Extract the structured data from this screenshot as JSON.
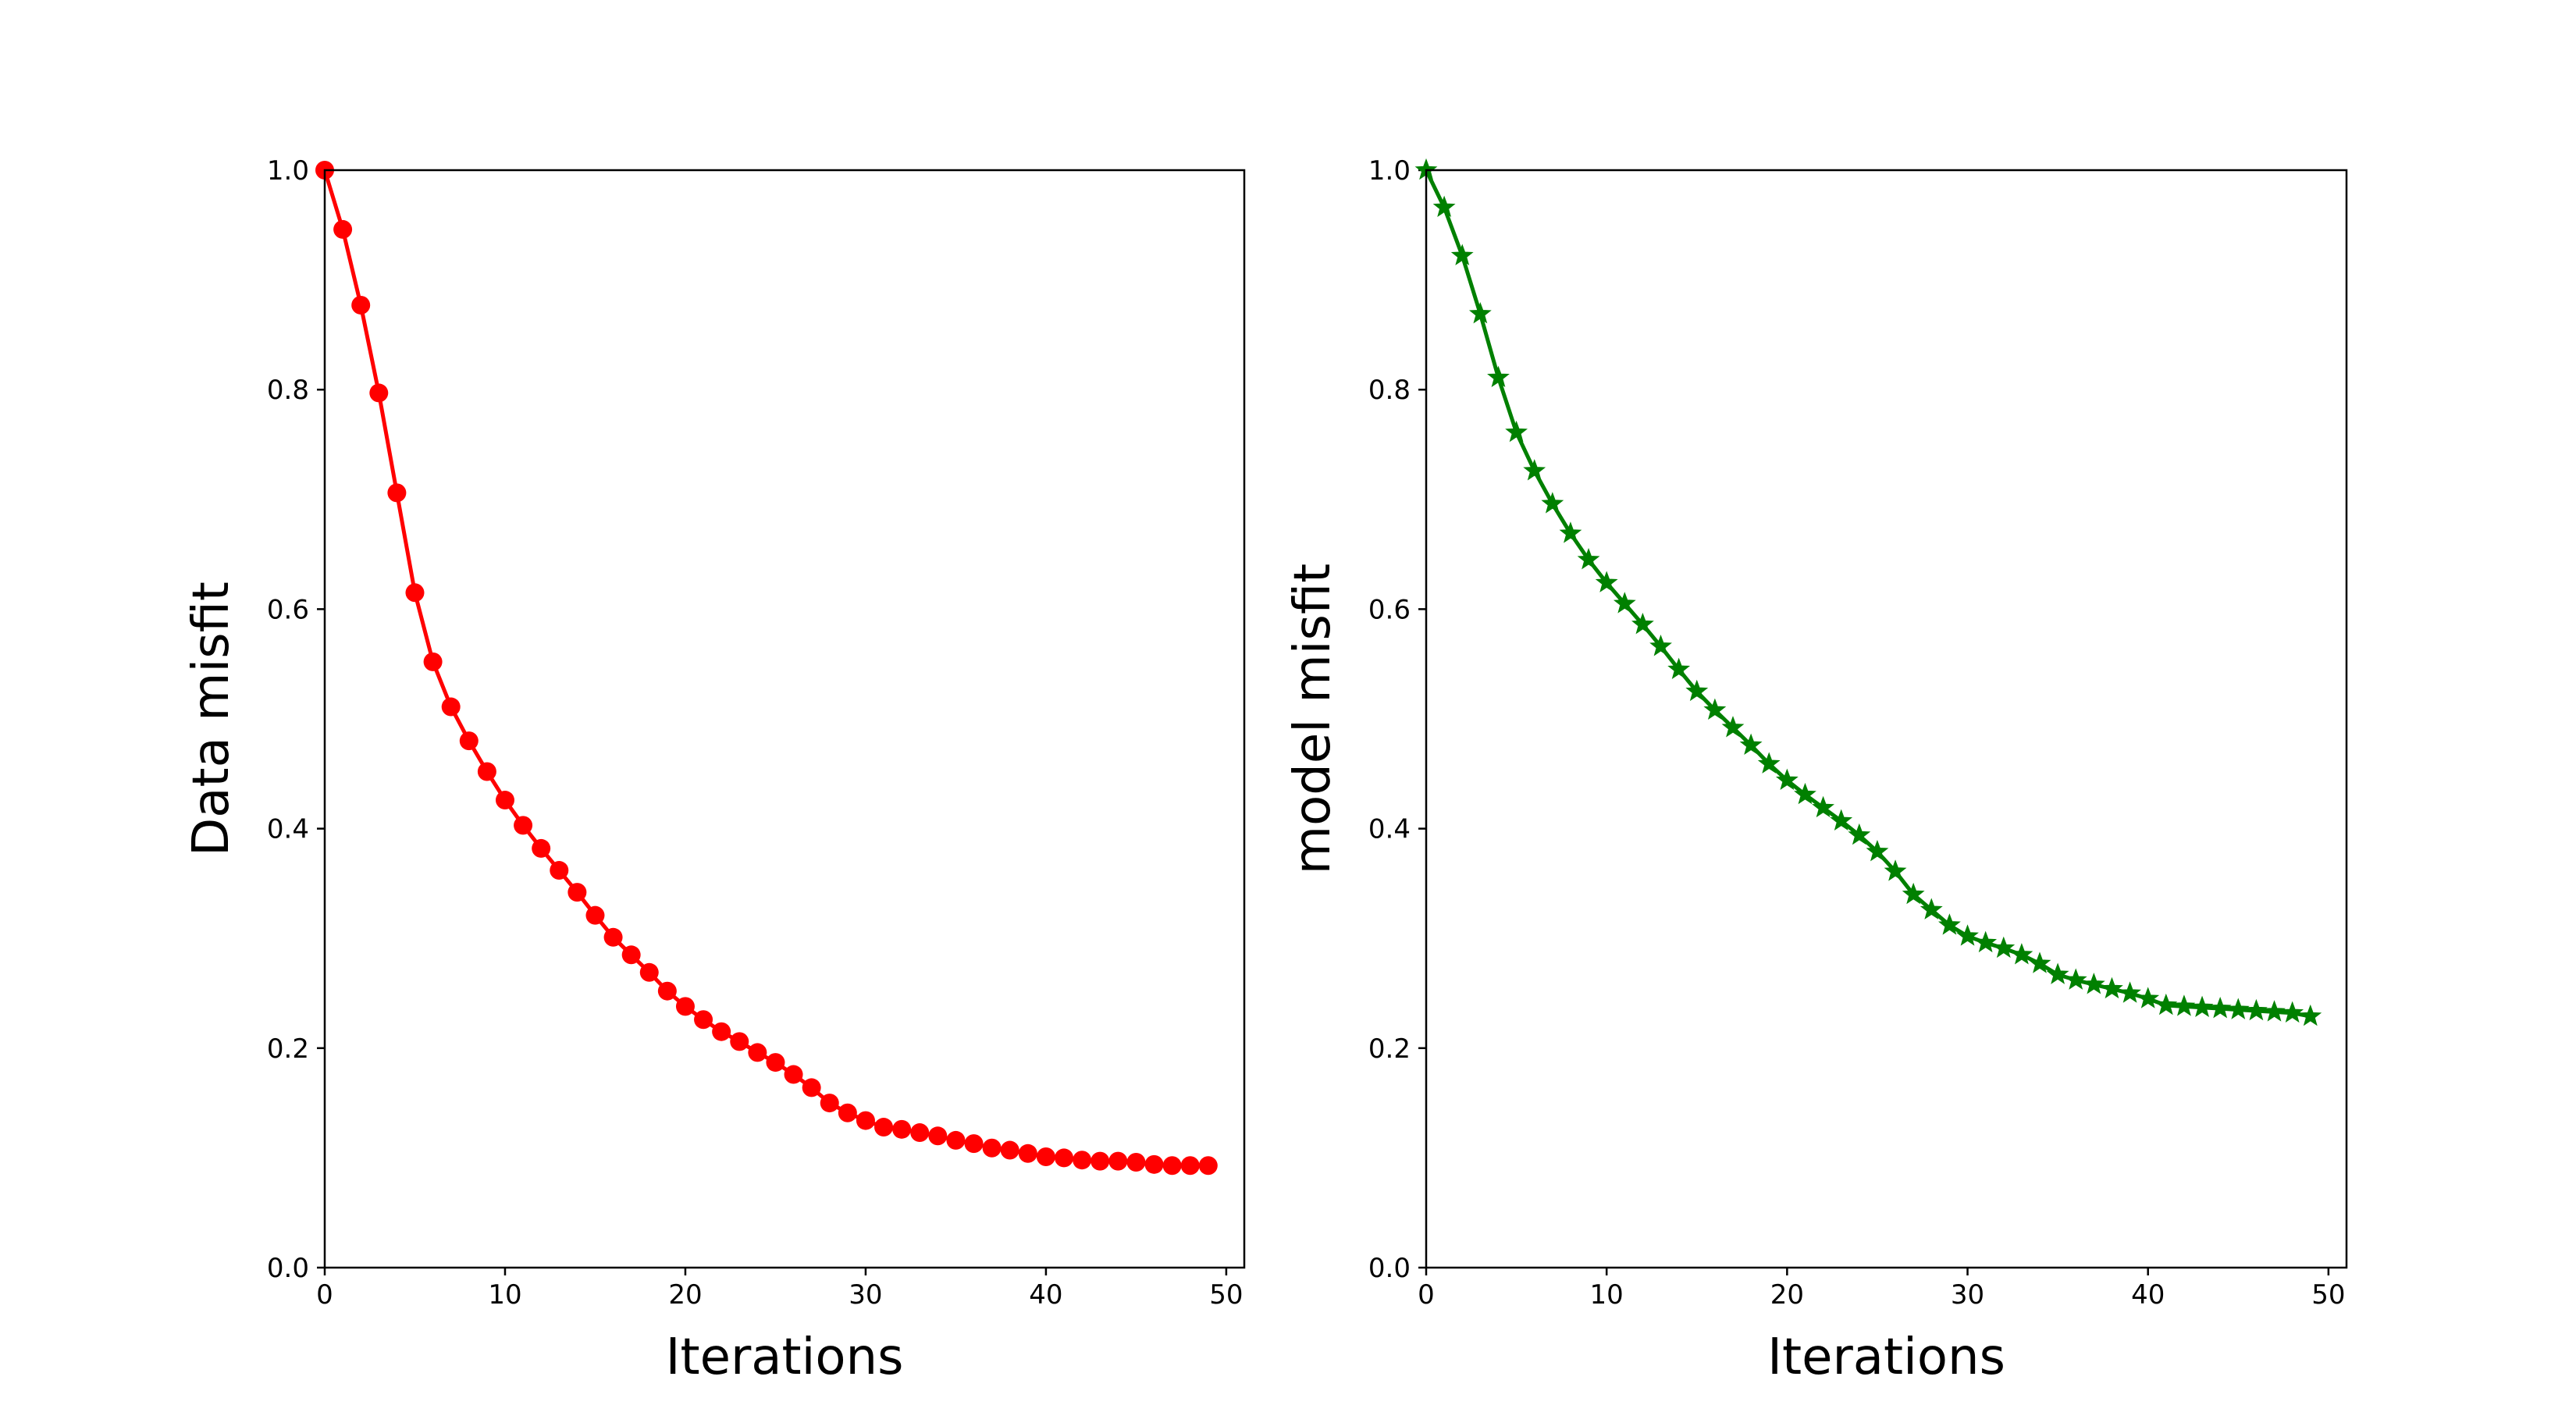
{
  "chart_data": [
    {
      "type": "line",
      "xlabel": "Iterations",
      "ylabel": "Data misfit",
      "xlim": [
        0,
        51
      ],
      "ylim": [
        0,
        1.0
      ],
      "xticks": [
        "0",
        "10",
        "20",
        "30",
        "40",
        "50"
      ],
      "yticks": [
        "0.0",
        "0.2",
        "0.4",
        "0.6",
        "0.8",
        "1.0"
      ],
      "grid": false,
      "color": "#ff0000",
      "marker": "circle",
      "series": [
        {
          "x": [
            0,
            1,
            2,
            3,
            4,
            5,
            6,
            7,
            8,
            9,
            10,
            11,
            12,
            13,
            14,
            15,
            16,
            17,
            18,
            19,
            20,
            21,
            22,
            23,
            24,
            25,
            26,
            27,
            28,
            29,
            30,
            31,
            32,
            33,
            34,
            35,
            36,
            37,
            38,
            39,
            40,
            41,
            42,
            43,
            44,
            45,
            46,
            47,
            48,
            49
          ],
          "values": [
            1.0,
            0.946,
            0.877,
            0.797,
            0.706,
            0.615,
            0.552,
            0.511,
            0.48,
            0.452,
            0.426,
            0.403,
            0.382,
            0.362,
            0.342,
            0.321,
            0.301,
            0.285,
            0.269,
            0.252,
            0.238,
            0.226,
            0.215,
            0.206,
            0.196,
            0.187,
            0.176,
            0.164,
            0.15,
            0.141,
            0.134,
            0.128,
            0.126,
            0.123,
            0.12,
            0.116,
            0.113,
            0.109,
            0.107,
            0.104,
            0.101,
            0.1,
            0.098,
            0.097,
            0.097,
            0.096,
            0.094,
            0.093,
            0.093,
            0.093
          ]
        }
      ]
    },
    {
      "type": "line",
      "xlabel": "Iterations",
      "ylabel": "model misfit",
      "xlim": [
        0,
        51
      ],
      "ylim": [
        0,
        1.0
      ],
      "xticks": [
        "0",
        "10",
        "20",
        "30",
        "40",
        "50"
      ],
      "yticks": [
        "0.0",
        "0.2",
        "0.4",
        "0.6",
        "0.8",
        "1.0"
      ],
      "grid": false,
      "color": "#008000",
      "marker": "star",
      "series": [
        {
          "x": [
            0,
            1,
            2,
            3,
            4,
            5,
            6,
            7,
            8,
            9,
            10,
            11,
            12,
            13,
            14,
            15,
            16,
            17,
            18,
            19,
            20,
            21,
            22,
            23,
            24,
            25,
            26,
            27,
            28,
            29,
            30,
            31,
            32,
            33,
            34,
            35,
            36,
            37,
            38,
            39,
            40,
            41,
            42,
            43,
            44,
            45,
            46,
            47,
            48,
            49
          ],
          "values": [
            1.0,
            0.966,
            0.922,
            0.869,
            0.811,
            0.761,
            0.726,
            0.696,
            0.669,
            0.645,
            0.624,
            0.605,
            0.586,
            0.566,
            0.545,
            0.525,
            0.508,
            0.492,
            0.476,
            0.459,
            0.444,
            0.431,
            0.419,
            0.407,
            0.394,
            0.379,
            0.361,
            0.34,
            0.326,
            0.312,
            0.302,
            0.296,
            0.291,
            0.285,
            0.277,
            0.267,
            0.262,
            0.258,
            0.254,
            0.25,
            0.245,
            0.239,
            0.238,
            0.237,
            0.236,
            0.235,
            0.234,
            0.233,
            0.232,
            0.229
          ]
        }
      ]
    }
  ]
}
